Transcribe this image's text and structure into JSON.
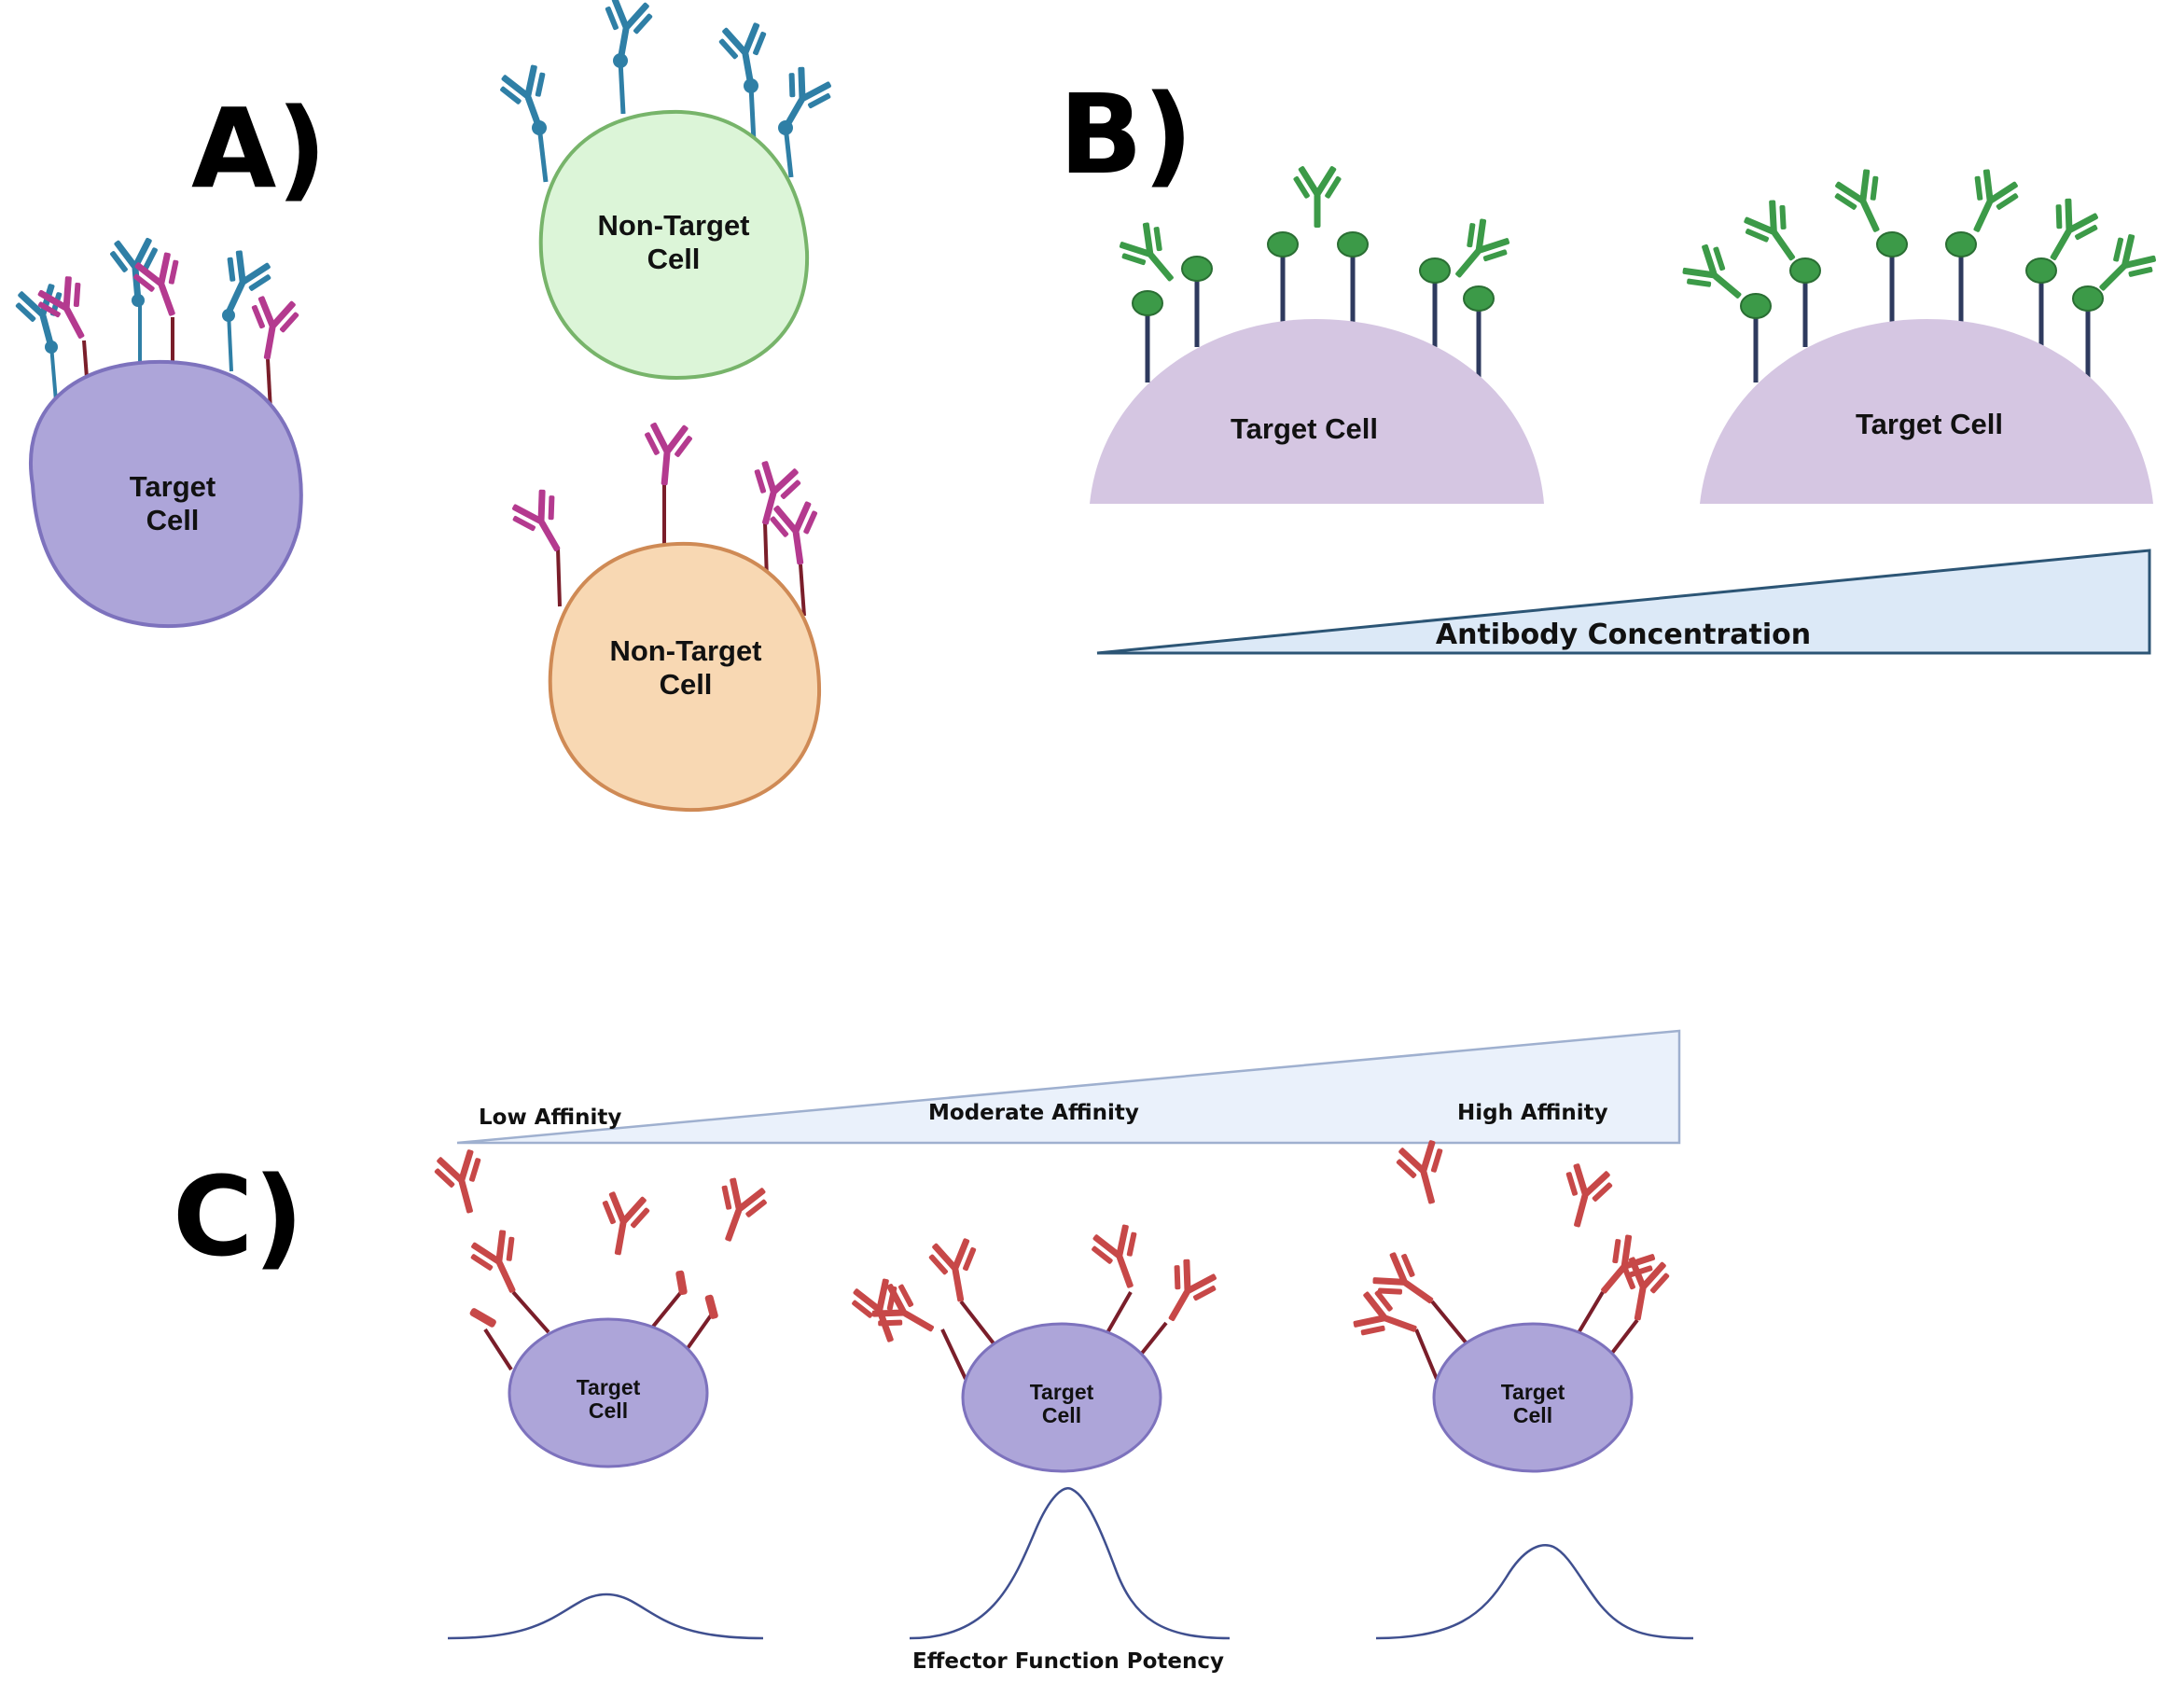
{
  "panels": {
    "a": {
      "label": "A)",
      "target_cell": {
        "line1": "Target",
        "line2": "Cell"
      },
      "non_target_green": {
        "line1": "Non-Target",
        "line2": "Cell"
      },
      "non_target_orange": {
        "line1": "Non-Target",
        "line2": "Cell"
      }
    },
    "b": {
      "label": "B)",
      "target_cell_left": "Target Cell",
      "target_cell_right": "Target Cell",
      "gradient_label": "Antibody Concentration"
    },
    "c": {
      "label": "C)",
      "affinity_low": "Low Affinity",
      "affinity_moderate": "Moderate Affinity",
      "affinity_high": "High Affinity",
      "cells": [
        {
          "line1": "Target",
          "line2": "Cell"
        },
        {
          "line1": "Target",
          "line2": "Cell"
        },
        {
          "line1": "Target",
          "line2": "Cell"
        }
      ],
      "potency_label": "Effector Function Potency"
    }
  },
  "colors": {
    "target_purple": "#ada5d9",
    "target_purple_stroke": "#7d72bd",
    "nontarget_green": "#dcf5d8",
    "nontarget_green_stroke": "#77b46a",
    "nontarget_orange": "#f8d8b3",
    "nontarget_orange_stroke": "#cf8a55",
    "dome_lilac": "#d5c6e2",
    "antibody_blue": "#2f7fa6",
    "antibody_magenta": "#b43a8f",
    "antibody_green": "#3c9a48",
    "antibody_red": "#c74848",
    "receptor_navy": "#2e3a5e",
    "receptor_maroon": "#7a1e2a",
    "gradient_fill": "#dce9f7",
    "curve_stroke": "#3f4f8f"
  }
}
